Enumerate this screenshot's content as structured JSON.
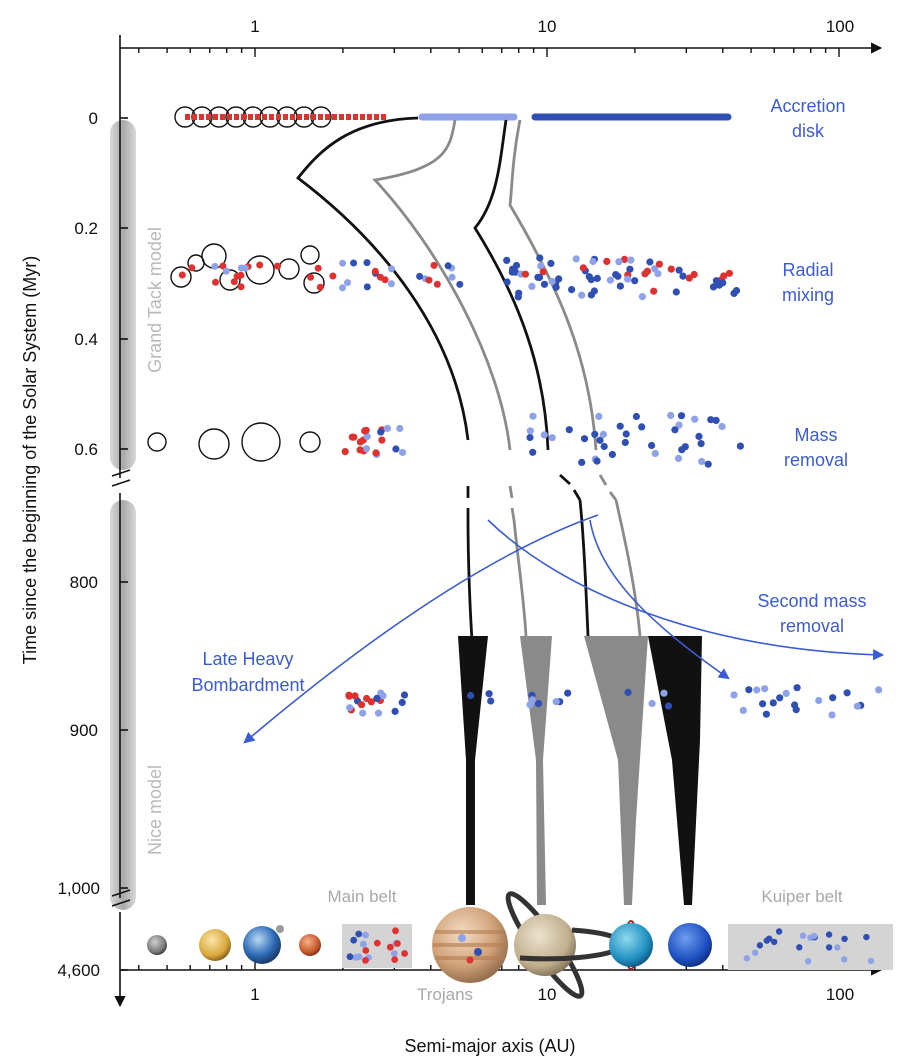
{
  "axes": {
    "x_top_ticks": [
      {
        "label": "1",
        "value": 1
      },
      {
        "label": "10",
        "value": 10
      },
      {
        "label": "100",
        "value": 100
      }
    ],
    "x_bottom_ticks": [
      {
        "label": "1",
        "value": 1
      },
      {
        "label": "10",
        "value": 10
      },
      {
        "label": "100",
        "value": 100
      }
    ],
    "x_label": "Semi-major axis (AU)",
    "x_scale": "log",
    "x_range": [
      0.35,
      150
    ],
    "y_label": "Time since the beginning of the Solar System (Myr)",
    "y_ticks_upper": [
      "0",
      "0.2",
      "0.4",
      "0.6"
    ],
    "y_ticks_lower": [
      "800",
      "900",
      "1,000"
    ],
    "y_tick_final": "4,600"
  },
  "models": {
    "upper": "Grand Tack model",
    "lower": "Nice model"
  },
  "stages": {
    "accretion": [
      "Accretion",
      "disk"
    ],
    "radial": [
      "Radial",
      "mixing"
    ],
    "mass_removal": [
      "Mass",
      "removal"
    ],
    "second_removal": [
      "Second mass",
      "removal"
    ],
    "lhb": [
      "Late Heavy",
      "Bombardment"
    ]
  },
  "regions": {
    "main_belt": "Main belt",
    "kuiper_belt": "Kuiper belt",
    "trojans": "Trojans"
  },
  "planets": [
    {
      "name": "mercury",
      "au": 0.39
    },
    {
      "name": "venus",
      "au": 0.72
    },
    {
      "name": "earth",
      "au": 1.0
    },
    {
      "name": "mars",
      "au": 1.52
    },
    {
      "name": "jupiter",
      "au": 5.2
    },
    {
      "name": "saturn",
      "au": 9.5
    },
    {
      "name": "uranus",
      "au": 19.2
    },
    {
      "name": "neptune",
      "au": 30.1
    }
  ],
  "colors": {
    "inner_material": "#e03131",
    "outer_material": "#2f4fb3",
    "mixed_material": "#8da2e8",
    "label_blue": "#3b5bd6",
    "model_bar": "#bdbdbd"
  }
}
